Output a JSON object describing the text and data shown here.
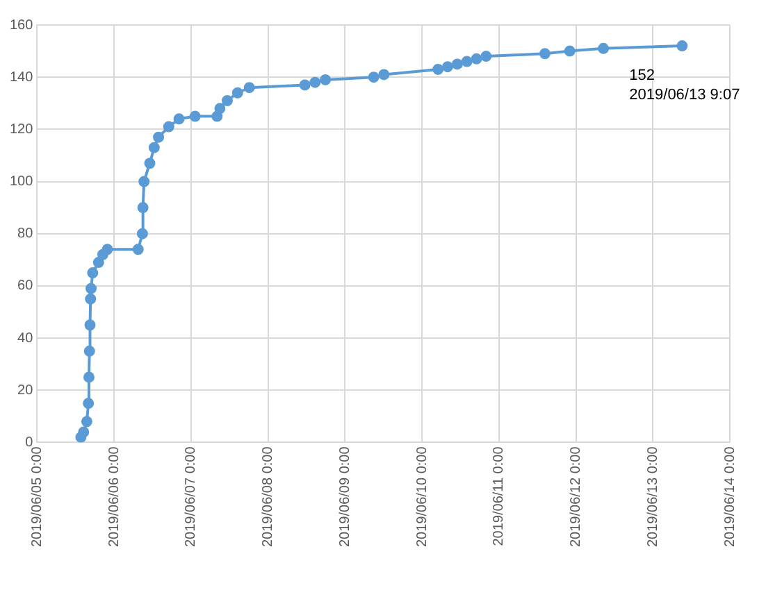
{
  "chart_data": {
    "type": "line",
    "color": "#5b9bd5",
    "marker": "circle",
    "grid": true,
    "legend": false,
    "x": [
      "2019-06-05T13:40",
      "2019-06-05T14:30",
      "2019-06-05T15:30",
      "2019-06-05T16:00",
      "2019-06-05T16:10",
      "2019-06-05T16:20",
      "2019-06-05T16:30",
      "2019-06-05T16:40",
      "2019-06-05T16:50",
      "2019-06-05T17:20",
      "2019-06-05T19:10",
      "2019-06-05T20:30",
      "2019-06-05T21:55",
      "2019-06-06T07:30",
      "2019-06-06T08:50",
      "2019-06-06T09:00",
      "2019-06-06T09:20",
      "2019-06-06T11:08",
      "2019-06-06T12:30",
      "2019-06-06T13:52",
      "2019-06-06T17:03",
      "2019-06-06T20:15",
      "2019-06-07T01:16",
      "2019-06-07T08:07",
      "2019-06-07T09:00",
      "2019-06-07T11:18",
      "2019-06-07T14:31",
      "2019-06-07T18:10",
      "2019-06-08T11:30",
      "2019-06-08T14:40",
      "2019-06-08T17:53",
      "2019-06-09T08:57",
      "2019-06-09T12:08",
      "2019-06-10T05:00",
      "2019-06-10T08:00",
      "2019-06-10T11:00",
      "2019-06-10T14:00",
      "2019-06-10T17:00",
      "2019-06-10T20:00",
      "2019-06-11T14:20",
      "2019-06-11T22:05",
      "2019-06-12T08:34",
      "2019-06-13T09:07"
    ],
    "values": [
      2,
      4,
      8,
      15,
      25,
      35,
      45,
      55,
      59,
      65,
      69,
      72,
      74,
      74,
      80,
      90,
      100,
      107,
      113,
      117,
      121,
      124,
      125,
      125,
      128,
      131,
      134,
      136,
      137,
      138,
      139,
      140,
      141,
      143,
      144,
      145,
      146,
      147,
      148,
      149,
      150,
      151,
      152
    ],
    "xlim": [
      "2019-06-05T00:00",
      "2019-06-14T00:00"
    ],
    "xticks": [
      {
        "value": "2019-06-05T00:00",
        "label": "2019/06/05 0:00"
      },
      {
        "value": "2019-06-06T00:00",
        "label": "2019/06/06 0:00"
      },
      {
        "value": "2019-06-07T00:00",
        "label": "2019/06/07 0:00"
      },
      {
        "value": "2019-06-08T00:00",
        "label": "2019/06/08 0:00"
      },
      {
        "value": "2019-06-09T00:00",
        "label": "2019/06/09 0:00"
      },
      {
        "value": "2019-06-10T00:00",
        "label": "2019/06/10 0:00"
      },
      {
        "value": "2019-06-11T00:00",
        "label": "2019/06/11 0:00"
      },
      {
        "value": "2019-06-12T00:00",
        "label": "2019/06/12 0:00"
      },
      {
        "value": "2019-06-13T00:00",
        "label": "2019/06/13 0:00"
      },
      {
        "value": "2019-06-14T00:00",
        "label": "2019/06/14 0:00"
      }
    ],
    "ylim": [
      0,
      160
    ],
    "yticks": [
      0,
      20,
      40,
      60,
      80,
      100,
      120,
      140,
      160
    ],
    "annotations": [
      {
        "text": "152\n2019/06/13 9:07",
        "x": "2019-06-13T09:07",
        "y": 152
      }
    ]
  }
}
